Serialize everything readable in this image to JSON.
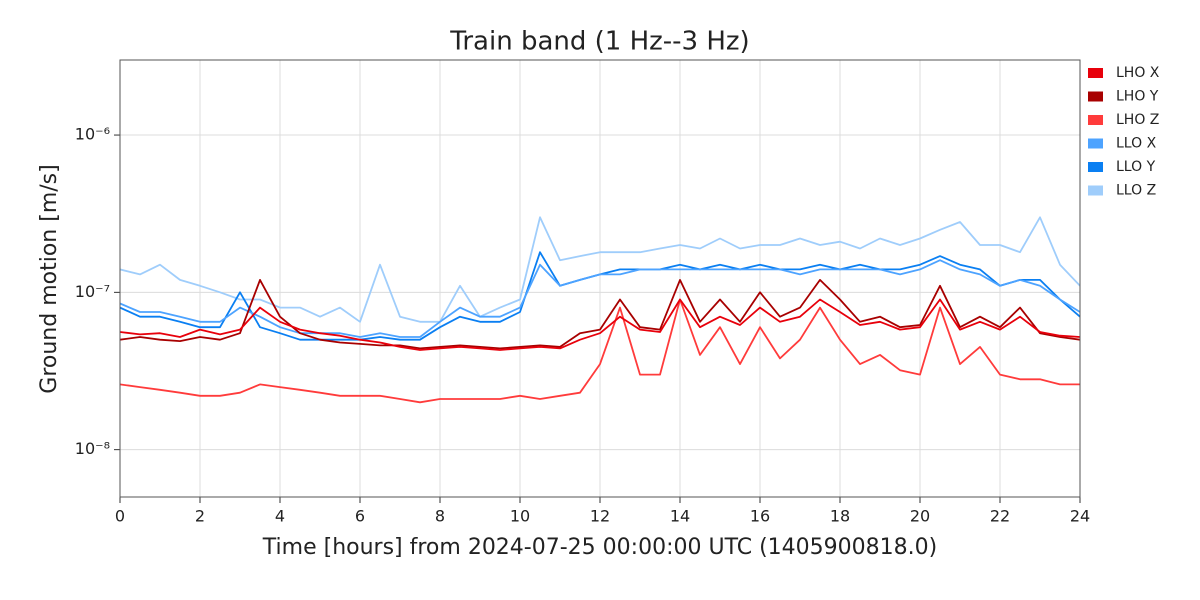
{
  "chart_data": {
    "type": "line",
    "title": "Train band (1 Hz--3 Hz)",
    "x_label": "Time [hours] from 2024-07-25 00:00:00 UTC (1405900818.0)",
    "y_label": "Ground motion [m/s]",
    "log_y": true,
    "grid": true,
    "legend": "outside-right",
    "xlim": [
      0,
      24
    ],
    "xticks": [
      0,
      2,
      4,
      6,
      8,
      10,
      12,
      14,
      16,
      18,
      20,
      22,
      24
    ],
    "ylim": [
      5e-09,
      3e-06
    ],
    "yticks": [
      {
        "value": 1e-08,
        "label": "10⁻⁸"
      },
      {
        "value": 1e-07,
        "label": "10⁻⁷"
      },
      {
        "value": 1e-06,
        "label": "10⁻⁶"
      }
    ],
    "x": [
      0,
      0.5,
      1,
      1.5,
      2,
      2.5,
      3,
      3.5,
      4,
      4.5,
      5,
      5.5,
      6,
      6.5,
      7,
      7.5,
      8,
      8.5,
      9,
      9.5,
      10,
      10.5,
      11,
      11.5,
      12,
      12.5,
      13,
      13.5,
      14,
      14.5,
      15,
      15.5,
      16,
      16.5,
      17,
      17.5,
      18,
      18.5,
      19,
      19.5,
      20,
      20.5,
      21,
      21.5,
      22,
      22.5,
      23,
      23.5,
      24
    ],
    "series": [
      {
        "name": "LHO X",
        "color": "#e8000b",
        "values": [
          5.6e-08,
          5.4e-08,
          5.5e-08,
          5.2e-08,
          5.8e-08,
          5.4e-08,
          5.8e-08,
          8e-08,
          6.5e-08,
          5.8e-08,
          5.5e-08,
          5.3e-08,
          5e-08,
          4.8e-08,
          4.5e-08,
          4.3e-08,
          4.4e-08,
          4.5e-08,
          4.4e-08,
          4.3e-08,
          4.4e-08,
          4.5e-08,
          4.4e-08,
          5e-08,
          5.5e-08,
          7e-08,
          5.8e-08,
          5.6e-08,
          9e-08,
          6e-08,
          7e-08,
          6.2e-08,
          8e-08,
          6.5e-08,
          7e-08,
          9e-08,
          7.5e-08,
          6.2e-08,
          6.5e-08,
          5.8e-08,
          6e-08,
          9e-08,
          5.8e-08,
          6.5e-08,
          5.8e-08,
          7e-08,
          5.6e-08,
          5.3e-08,
          5.2e-08
        ]
      },
      {
        "name": "LHO Y",
        "color": "#a80000",
        "values": [
          5e-08,
          5.2e-08,
          5e-08,
          4.9e-08,
          5.2e-08,
          5e-08,
          5.5e-08,
          1.2e-07,
          7e-08,
          5.5e-08,
          5e-08,
          4.8e-08,
          4.7e-08,
          4.6e-08,
          4.6e-08,
          4.4e-08,
          4.5e-08,
          4.6e-08,
          4.5e-08,
          4.4e-08,
          4.5e-08,
          4.6e-08,
          4.5e-08,
          5.5e-08,
          5.8e-08,
          9e-08,
          6e-08,
          5.8e-08,
          1.2e-07,
          6.5e-08,
          9e-08,
          6.5e-08,
          1e-07,
          7e-08,
          8e-08,
          1.2e-07,
          9e-08,
          6.5e-08,
          7e-08,
          6e-08,
          6.2e-08,
          1.1e-07,
          6e-08,
          7e-08,
          6e-08,
          8e-08,
          5.5e-08,
          5.2e-08,
          5e-08
        ]
      },
      {
        "name": "LHO Z",
        "color": "#ff3b3b",
        "values": [
          2.6e-08,
          2.5e-08,
          2.4e-08,
          2.3e-08,
          2.2e-08,
          2.2e-08,
          2.3e-08,
          2.6e-08,
          2.5e-08,
          2.4e-08,
          2.3e-08,
          2.2e-08,
          2.2e-08,
          2.2e-08,
          2.1e-08,
          2e-08,
          2.1e-08,
          2.1e-08,
          2.1e-08,
          2.1e-08,
          2.2e-08,
          2.1e-08,
          2.2e-08,
          2.3e-08,
          3.5e-08,
          8e-08,
          3e-08,
          3e-08,
          9e-08,
          4e-08,
          6e-08,
          3.5e-08,
          6e-08,
          3.8e-08,
          5e-08,
          8e-08,
          5e-08,
          3.5e-08,
          4e-08,
          3.2e-08,
          3e-08,
          8e-08,
          3.5e-08,
          4.5e-08,
          3e-08,
          2.8e-08,
          2.8e-08,
          2.6e-08,
          2.6e-08
        ]
      },
      {
        "name": "LLO X",
        "color": "#4da3ff",
        "values": [
          8.5e-08,
          7.5e-08,
          7.5e-08,
          7e-08,
          6.5e-08,
          6.5e-08,
          8e-08,
          7e-08,
          6e-08,
          5.5e-08,
          5.5e-08,
          5.5e-08,
          5.2e-08,
          5.5e-08,
          5.2e-08,
          5.2e-08,
          6.5e-08,
          8e-08,
          7e-08,
          7e-08,
          8e-08,
          1.5e-07,
          1.1e-07,
          1.2e-07,
          1.3e-07,
          1.3e-07,
          1.4e-07,
          1.4e-07,
          1.4e-07,
          1.4e-07,
          1.4e-07,
          1.4e-07,
          1.4e-07,
          1.4e-07,
          1.3e-07,
          1.4e-07,
          1.4e-07,
          1.4e-07,
          1.4e-07,
          1.3e-07,
          1.4e-07,
          1.6e-07,
          1.4e-07,
          1.3e-07,
          1.1e-07,
          1.2e-07,
          1.1e-07,
          9e-08,
          7.5e-08
        ]
      },
      {
        "name": "LLO Y",
        "color": "#0a7ff2",
        "values": [
          8e-08,
          7e-08,
          7e-08,
          6.5e-08,
          6e-08,
          6e-08,
          1e-07,
          6e-08,
          5.5e-08,
          5e-08,
          5e-08,
          5e-08,
          5e-08,
          5.2e-08,
          5e-08,
          5e-08,
          6e-08,
          7e-08,
          6.5e-08,
          6.5e-08,
          7.5e-08,
          1.8e-07,
          1.1e-07,
          1.2e-07,
          1.3e-07,
          1.4e-07,
          1.4e-07,
          1.4e-07,
          1.5e-07,
          1.4e-07,
          1.5e-07,
          1.4e-07,
          1.5e-07,
          1.4e-07,
          1.4e-07,
          1.5e-07,
          1.4e-07,
          1.5e-07,
          1.4e-07,
          1.4e-07,
          1.5e-07,
          1.7e-07,
          1.5e-07,
          1.4e-07,
          1.1e-07,
          1.2e-07,
          1.2e-07,
          9e-08,
          7e-08
        ]
      },
      {
        "name": "LLO Z",
        "color": "#9fcdfb",
        "values": [
          1.4e-07,
          1.3e-07,
          1.5e-07,
          1.2e-07,
          1.1e-07,
          1e-07,
          9e-08,
          9e-08,
          8e-08,
          8e-08,
          7e-08,
          8e-08,
          6.5e-08,
          1.5e-07,
          7e-08,
          6.5e-08,
          6.5e-08,
          1.1e-07,
          7e-08,
          8e-08,
          9e-08,
          3e-07,
          1.6e-07,
          1.7e-07,
          1.8e-07,
          1.8e-07,
          1.8e-07,
          1.9e-07,
          2e-07,
          1.9e-07,
          2.2e-07,
          1.9e-07,
          2e-07,
          2e-07,
          2.2e-07,
          2e-07,
          2.1e-07,
          1.9e-07,
          2.2e-07,
          2e-07,
          2.2e-07,
          2.5e-07,
          2.8e-07,
          2e-07,
          2e-07,
          1.8e-07,
          3e-07,
          1.5e-07,
          1.1e-07
        ]
      }
    ]
  }
}
